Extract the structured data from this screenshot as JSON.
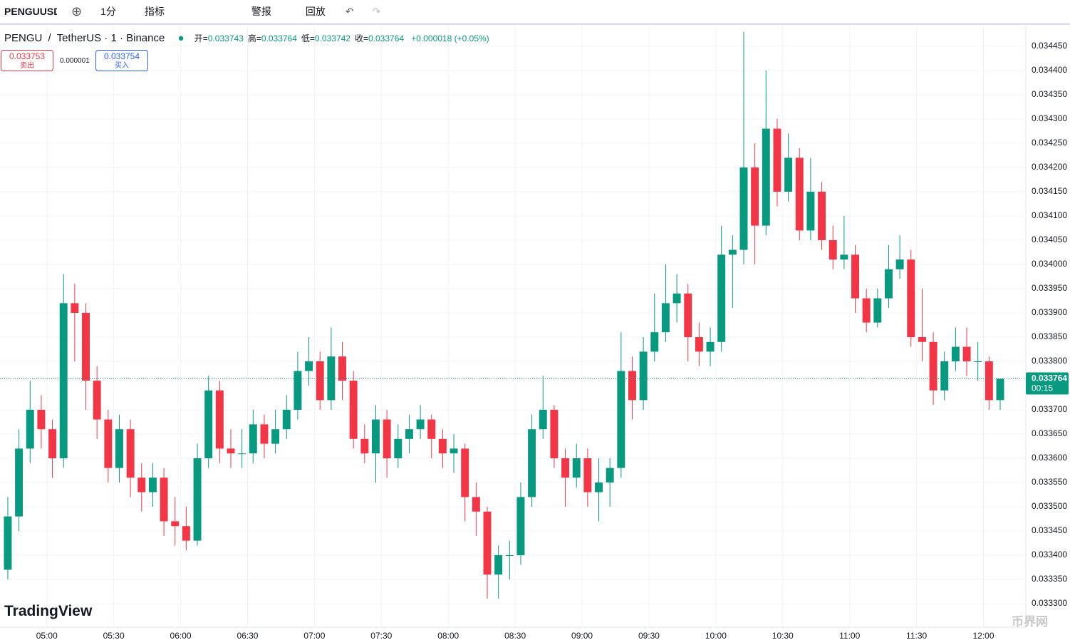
{
  "toolbar": {
    "symbol": "PENGUUSDT",
    "interval": "1分",
    "indicators": "指标",
    "alert": "警报",
    "replay": "回放"
  },
  "legend": {
    "symbol": "PENGU",
    "slash": "/",
    "desc": "TetherUS · 1 · Binance",
    "ohlc": [
      {
        "label": "开=",
        "value": "0.033743"
      },
      {
        "label": "高=",
        "value": "0.033764"
      },
      {
        "label": "低=",
        "value": "0.033742"
      },
      {
        "label": "收=",
        "value": "0.033764"
      }
    ],
    "change": "+0.000018 (+0.05%)"
  },
  "trade": {
    "sell_price": "0.033753",
    "sell": "卖出",
    "spread": "0.000001",
    "buy_price": "0.033754",
    "buy": "买入"
  },
  "branding": {
    "logo": "TradingView",
    "watermark": "币界网"
  },
  "chart_data": {
    "type": "candlestick",
    "up_color": "#089981",
    "down_color": "#f23645",
    "x": [
      "04:40",
      "04:45",
      "04:50",
      "04:55",
      "05:00",
      "05:05",
      "05:10",
      "05:15",
      "05:20",
      "05:25",
      "05:30",
      "05:35",
      "05:40",
      "05:45",
      "05:50",
      "05:55",
      "06:00",
      "06:05",
      "06:10",
      "06:15",
      "06:20",
      "06:25",
      "06:30",
      "06:35",
      "06:40",
      "06:45",
      "06:50",
      "06:55",
      "07:00",
      "07:05",
      "07:10",
      "07:15",
      "07:20",
      "07:25",
      "07:30",
      "07:35",
      "07:40",
      "07:45",
      "07:50",
      "07:55",
      "08:00",
      "08:05",
      "08:10",
      "08:15",
      "08:20",
      "08:25",
      "08:30",
      "08:35",
      "08:40",
      "08:45",
      "08:50",
      "08:55",
      "09:00",
      "09:05",
      "09:10",
      "09:15",
      "09:20",
      "09:25",
      "09:30",
      "09:35",
      "09:40",
      "09:45",
      "09:50",
      "09:55",
      "10:00",
      "10:05",
      "10:10",
      "10:15",
      "10:20",
      "10:25",
      "10:30",
      "10:35",
      "10:40",
      "10:45",
      "10:50",
      "10:55",
      "11:00",
      "11:05",
      "11:10",
      "11:15",
      "11:20",
      "11:25",
      "11:30",
      "11:35",
      "11:40",
      "11:45",
      "11:50",
      "11:55",
      "12:00",
      "12:05"
    ],
    "open": [
      0.03337,
      0.03348,
      0.03362,
      0.0337,
      0.03366,
      0.0336,
      0.03392,
      0.0339,
      0.03376,
      0.03368,
      0.03358,
      0.03366,
      0.03356,
      0.03353,
      0.03356,
      0.03347,
      0.03346,
      0.03343,
      0.0336,
      0.03374,
      0.03362,
      0.03361,
      0.03361,
      0.03367,
      0.03363,
      0.03366,
      0.0337,
      0.03378,
      0.0338,
      0.03372,
      0.03381,
      0.03376,
      0.03364,
      0.03361,
      0.03368,
      0.0336,
      0.03364,
      0.03366,
      0.03368,
      0.03364,
      0.03361,
      0.03362,
      0.03352,
      0.03349,
      0.03336,
      0.0334,
      0.0334,
      0.03352,
      0.03366,
      0.0337,
      0.0336,
      0.03356,
      0.0336,
      0.03353,
      0.03355,
      0.03358,
      0.03378,
      0.03372,
      0.03382,
      0.03386,
      0.03392,
      0.03394,
      0.03385,
      0.03382,
      0.03384,
      0.03402,
      0.03403,
      0.0342,
      0.03408,
      0.03428,
      0.03415,
      0.03422,
      0.03407,
      0.03415,
      0.03405,
      0.03401,
      0.03402,
      0.03393,
      0.03388,
      0.03393,
      0.03399,
      0.03401,
      0.03385,
      0.03384,
      0.03374,
      0.0338,
      0.03383,
      0.0338,
      0.0338,
      0.03372
    ],
    "high": [
      0.03352,
      0.03366,
      0.03376,
      0.03373,
      0.03368,
      0.03398,
      0.03396,
      0.03392,
      0.03379,
      0.0337,
      0.03369,
      0.03368,
      0.03359,
      0.03359,
      0.03358,
      0.03352,
      0.0335,
      0.03363,
      0.03377,
      0.03376,
      0.03366,
      0.03366,
      0.0337,
      0.03369,
      0.0337,
      0.03373,
      0.03382,
      0.03385,
      0.03382,
      0.03387,
      0.03384,
      0.03378,
      0.03367,
      0.03371,
      0.0337,
      0.03367,
      0.03369,
      0.03371,
      0.03369,
      0.03366,
      0.03365,
      0.03363,
      0.03355,
      0.0335,
      0.03342,
      0.03343,
      0.03355,
      0.03369,
      0.03377,
      0.03371,
      0.03362,
      0.03363,
      0.03362,
      0.0336,
      0.0336,
      0.03386,
      0.03381,
      0.03385,
      0.03394,
      0.034,
      0.03398,
      0.03396,
      0.03388,
      0.03387,
      0.03408,
      0.03406,
      0.03448,
      0.03425,
      0.0344,
      0.0343,
      0.03427,
      0.03424,
      0.03422,
      0.03417,
      0.03408,
      0.0341,
      0.03404,
      0.03395,
      0.03395,
      0.03404,
      0.03406,
      0.03403,
      0.03395,
      0.03386,
      0.03382,
      0.03387,
      0.03387,
      0.03384,
      0.03381,
      0.033764
    ],
    "low": [
      0.03335,
      0.03345,
      0.03359,
      0.03362,
      0.03356,
      0.03358,
      0.0338,
      0.0337,
      0.03364,
      0.03355,
      0.03355,
      0.03352,
      0.03349,
      0.0335,
      0.03344,
      0.03342,
      0.03341,
      0.03342,
      0.03358,
      0.03359,
      0.03358,
      0.03358,
      0.03359,
      0.0336,
      0.03361,
      0.03364,
      0.03368,
      0.03375,
      0.0337,
      0.0337,
      0.03372,
      0.03362,
      0.03359,
      0.03355,
      0.03356,
      0.03358,
      0.03361,
      0.03364,
      0.0336,
      0.03358,
      0.03357,
      0.03347,
      0.03344,
      0.03331,
      0.03331,
      0.03335,
      0.03338,
      0.0335,
      0.03364,
      0.03358,
      0.0335,
      0.03354,
      0.0335,
      0.03347,
      0.0335,
      0.03356,
      0.03368,
      0.0337,
      0.0338,
      0.03384,
      0.03388,
      0.0338,
      0.03379,
      0.03379,
      0.03382,
      0.03391,
      0.034,
      0.034,
      0.03406,
      0.03412,
      0.03413,
      0.03405,
      0.03405,
      0.03403,
      0.03399,
      0.03399,
      0.0339,
      0.03386,
      0.03387,
      0.03391,
      0.03397,
      0.03383,
      0.0338,
      0.03371,
      0.03372,
      0.03378,
      0.03377,
      0.03376,
      0.0337,
      0.0337
    ],
    "close": [
      0.03348,
      0.03362,
      0.0337,
      0.03366,
      0.0336,
      0.03392,
      0.0339,
      0.03376,
      0.03368,
      0.03358,
      0.03366,
      0.03356,
      0.03353,
      0.03356,
      0.03347,
      0.03346,
      0.03343,
      0.0336,
      0.03374,
      0.03362,
      0.03361,
      0.03361,
      0.03367,
      0.03363,
      0.03366,
      0.0337,
      0.03378,
      0.0338,
      0.03372,
      0.03381,
      0.03376,
      0.03364,
      0.03361,
      0.03368,
      0.0336,
      0.03364,
      0.03366,
      0.03368,
      0.03364,
      0.03361,
      0.03362,
      0.03352,
      0.03349,
      0.03336,
      0.0334,
      0.0334,
      0.03352,
      0.03366,
      0.0337,
      0.0336,
      0.03356,
      0.0336,
      0.03353,
      0.03355,
      0.03358,
      0.03378,
      0.03372,
      0.03382,
      0.03386,
      0.03392,
      0.03394,
      0.03385,
      0.03382,
      0.03384,
      0.03402,
      0.03403,
      0.0342,
      0.03408,
      0.03428,
      0.03415,
      0.03422,
      0.03407,
      0.03415,
      0.03405,
      0.03401,
      0.03402,
      0.03393,
      0.03388,
      0.03393,
      0.03399,
      0.03401,
      0.03385,
      0.03384,
      0.03374,
      0.0338,
      0.03383,
      0.0338,
      0.0338,
      0.03372,
      0.033764
    ],
    "xlim": [
      "04:39",
      "12:19"
    ],
    "xticks": [
      "05:00",
      "05:30",
      "06:00",
      "06:30",
      "07:00",
      "07:30",
      "08:00",
      "08:30",
      "09:00",
      "09:30",
      "10:00",
      "10:30",
      "11:00",
      "11:30",
      "12:00"
    ],
    "ylim": [
      0.0332515,
      0.0344926
    ],
    "yticks": [
      {
        "value": 0.0333,
        "label": "0.033300"
      },
      {
        "value": 0.03335,
        "label": "0.033350"
      },
      {
        "value": 0.0334,
        "label": "0.033400"
      },
      {
        "value": 0.03345,
        "label": "0.033450"
      },
      {
        "value": 0.0335,
        "label": "0.033500"
      },
      {
        "value": 0.03355,
        "label": "0.033550"
      },
      {
        "value": 0.0336,
        "label": "0.033600"
      },
      {
        "value": 0.03365,
        "label": "0.033650"
      },
      {
        "value": 0.0337,
        "label": "0.033700"
      },
      {
        "value": 0.0338,
        "label": "0.033800"
      },
      {
        "value": 0.03385,
        "label": "0.033850"
      },
      {
        "value": 0.0339,
        "label": "0.033900"
      },
      {
        "value": 0.03395,
        "label": "0.033950"
      },
      {
        "value": 0.034,
        "label": "0.034000"
      },
      {
        "value": 0.03405,
        "label": "0.034050"
      },
      {
        "value": 0.0341,
        "label": "0.034100"
      },
      {
        "value": 0.03415,
        "label": "0.034150"
      },
      {
        "value": 0.0342,
        "label": "0.034200"
      },
      {
        "value": 0.03425,
        "label": "0.034250"
      },
      {
        "value": 0.0343,
        "label": "0.034300"
      },
      {
        "value": 0.03435,
        "label": "0.034350"
      },
      {
        "value": 0.0344,
        "label": "0.034400"
      },
      {
        "value": 0.03445,
        "label": "0.034450"
      }
    ],
    "grid": true,
    "last_price": 0.033764,
    "countdown": "00:15"
  }
}
